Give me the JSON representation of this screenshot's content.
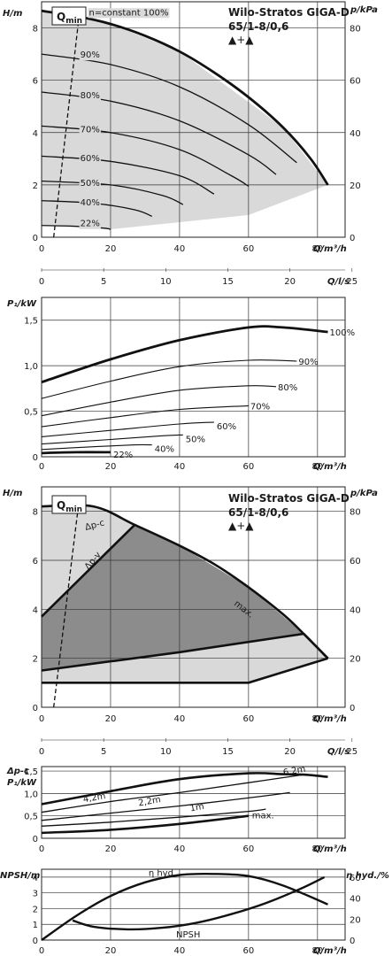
{
  "chart_data": [
    {
      "type": "area",
      "id": "h-curves",
      "title": "Wilo-Stratos GIGA-D",
      "subtitle": "65/1-8/0,6",
      "pump_symbols": "▲+▲",
      "qmin_label": "Q",
      "qmin_sub": "min",
      "ylabel_left": "H/m",
      "ylabel_right": "p/kPa",
      "xlabel": "Q/m³/h",
      "xlabel2": "Q/l/s",
      "xlim": [
        0,
        88
      ],
      "ylim": [
        0,
        9
      ],
      "xticks": [
        "0",
        "20",
        "40",
        "60",
        "80"
      ],
      "yticks_left": [
        "0",
        "2",
        "4",
        "6",
        "8"
      ],
      "yticks_right": [
        "0",
        "20",
        "40",
        "60",
        "80"
      ],
      "xticks2": [
        "0",
        "5",
        "10",
        "15",
        "20",
        "25"
      ],
      "grid": true,
      "envelope": [
        [
          0,
          8.65
        ],
        [
          0,
          0.45
        ],
        [
          20,
          0.3
        ],
        [
          60,
          0.85
        ],
        [
          83,
          2.0
        ],
        [
          70,
          4.2
        ],
        [
          40,
          7.1
        ],
        [
          20,
          8.15
        ],
        [
          0,
          8.65
        ]
      ],
      "series": [
        {
          "name": "n=constant 100%",
          "x": [
            0,
            10,
            20,
            30,
            40,
            50,
            60,
            70,
            78,
            83
          ],
          "y": [
            8.65,
            8.45,
            8.15,
            7.7,
            7.1,
            6.3,
            5.35,
            4.2,
            3.0,
            2.0
          ]
        },
        {
          "name": "90%",
          "x": [
            0,
            20,
            40,
            60,
            74
          ],
          "y": [
            7.0,
            6.6,
            5.75,
            4.3,
            2.85
          ]
        },
        {
          "name": "80%",
          "x": [
            0,
            20,
            40,
            60,
            68
          ],
          "y": [
            5.55,
            5.2,
            4.45,
            3.15,
            2.4
          ]
        },
        {
          "name": "70%",
          "x": [
            0,
            20,
            40,
            55,
            60
          ],
          "y": [
            4.25,
            4.0,
            3.35,
            2.35,
            1.95
          ]
        },
        {
          "name": "60%",
          "x": [
            0,
            20,
            40,
            50
          ],
          "y": [
            3.1,
            2.9,
            2.35,
            1.65
          ]
        },
        {
          "name": "50%",
          "x": [
            0,
            20,
            35,
            41
          ],
          "y": [
            2.15,
            2.0,
            1.6,
            1.25
          ]
        },
        {
          "name": "40%",
          "x": [
            0,
            15,
            27,
            32
          ],
          "y": [
            1.4,
            1.3,
            1.05,
            0.8
          ]
        },
        {
          "name": "22%",
          "x": [
            0,
            10,
            18,
            20
          ],
          "y": [
            0.45,
            0.42,
            0.35,
            0.3
          ]
        }
      ],
      "qmin_line": {
        "x": [
          3.5,
          11
        ],
        "y": [
          0,
          8.6
        ]
      }
    },
    {
      "type": "line",
      "id": "p1-curves",
      "ylabel": "P₁/kW",
      "xlabel": "Q/m³/h",
      "xlim": [
        0,
        88
      ],
      "ylim": [
        0,
        1.75
      ],
      "xticks": [
        "0",
        "20",
        "40",
        "60",
        "80"
      ],
      "yticks": [
        "0",
        "0,5",
        "1,0",
        "1,5"
      ],
      "grid": true,
      "series": [
        {
          "name": "100%",
          "x": [
            0,
            20,
            40,
            60,
            70,
            83
          ],
          "y": [
            0.82,
            1.07,
            1.28,
            1.42,
            1.42,
            1.37
          ]
        },
        {
          "name": "90%",
          "x": [
            0,
            20,
            40,
            60,
            74
          ],
          "y": [
            0.64,
            0.83,
            0.99,
            1.06,
            1.05
          ]
        },
        {
          "name": "80%",
          "x": [
            0,
            20,
            40,
            60,
            68
          ],
          "y": [
            0.45,
            0.6,
            0.73,
            0.78,
            0.77
          ]
        },
        {
          "name": "70%",
          "x": [
            0,
            20,
            40,
            60
          ],
          "y": [
            0.33,
            0.43,
            0.52,
            0.56
          ]
        },
        {
          "name": "60%",
          "x": [
            0,
            20,
            40,
            50
          ],
          "y": [
            0.22,
            0.29,
            0.36,
            0.38
          ]
        },
        {
          "name": "50%",
          "x": [
            0,
            20,
            35,
            41
          ],
          "y": [
            0.14,
            0.19,
            0.23,
            0.24
          ]
        },
        {
          "name": "40%",
          "x": [
            0,
            15,
            27,
            32
          ],
          "y": [
            0.08,
            0.11,
            0.13,
            0.13
          ]
        },
        {
          "name": "22%",
          "x": [
            0,
            10,
            20
          ],
          "y": [
            0.04,
            0.05,
            0.05
          ]
        }
      ]
    },
    {
      "type": "area",
      "id": "control-modes",
      "title": "Wilo-Stratos GIGA-D",
      "subtitle": "65/1-8/0,6",
      "pump_symbols": "▲+▲",
      "qmin_label": "Q",
      "qmin_sub": "min",
      "ylabel_left": "H/m",
      "ylabel_right": "p/kPa",
      "xlabel": "Q/m³/h",
      "xlabel2": "Q/l/s",
      "xlim": [
        0,
        88
      ],
      "ylim": [
        0,
        9
      ],
      "xticks": [
        "0",
        "20",
        "40",
        "60",
        "80"
      ],
      "yticks_left": [
        "0",
        "2",
        "4",
        "6",
        "8"
      ],
      "yticks_right": [
        "0",
        "20",
        "40",
        "60",
        "80"
      ],
      "xticks2": [
        "0",
        "5",
        "10",
        "15",
        "20",
        "25"
      ],
      "grid": true,
      "labels": {
        "dpc": "Δp-c",
        "dpv": "Δp-v",
        "max": "max."
      },
      "light_region": [
        [
          0,
          8.2
        ],
        [
          15,
          8.2
        ],
        [
          27,
          7.45
        ],
        [
          40,
          6.6
        ],
        [
          60,
          4.9
        ],
        [
          76,
          3.0
        ],
        [
          83,
          2.0
        ],
        [
          60,
          1.0
        ],
        [
          0,
          1.0
        ]
      ],
      "dark_region": [
        [
          0,
          3.7
        ],
        [
          27,
          7.45
        ],
        [
          40,
          6.6
        ],
        [
          60,
          4.9
        ],
        [
          76,
          3.0
        ],
        [
          40,
          2.25
        ],
        [
          0,
          1.5
        ]
      ],
      "lines": [
        {
          "name": "max.",
          "x": [
            0,
            15,
            27,
            40,
            50,
            60,
            70,
            76,
            83
          ],
          "y": [
            8.2,
            8.2,
            7.45,
            6.6,
            5.85,
            4.9,
            3.8,
            3.0,
            2.0
          ]
        },
        {
          "name": "min",
          "x": [
            0,
            60,
            83
          ],
          "y": [
            1.0,
            1.0,
            2.0
          ]
        },
        {
          "name": "Δp-v",
          "x": [
            0,
            27
          ],
          "y": [
            3.7,
            7.45
          ]
        },
        {
          "name": "Δp-v-low",
          "x": [
            0,
            40,
            76
          ],
          "y": [
            1.5,
            2.25,
            3.0
          ]
        },
        {
          "name": "76-83",
          "x": [
            76,
            83
          ],
          "y": [
            3.0,
            2.0
          ]
        }
      ],
      "qmin_line": {
        "x": [
          3.5,
          11
        ],
        "y": [
          0,
          8.6
        ]
      }
    },
    {
      "type": "line",
      "id": "p1-control",
      "ylabel": "Δp-c",
      "ylabel2": "P₁/kW",
      "xlabel": "Q/m³/h",
      "xlim": [
        0,
        88
      ],
      "ylim": [
        0,
        1.6
      ],
      "xticks": [
        "0",
        "20",
        "40",
        "60",
        "80"
      ],
      "yticks": [
        "0",
        "0,5",
        "1,0",
        "1,5"
      ],
      "grid": true,
      "series": [
        {
          "name": "max.",
          "x": [
            0,
            20,
            40,
            60,
            70,
            76,
            83
          ],
          "y": [
            0.76,
            1.05,
            1.32,
            1.45,
            1.43,
            1.42,
            1.37
          ]
        },
        {
          "name": "6,2m",
          "x": [
            0,
            20,
            40,
            60,
            76
          ],
          "y": [
            0.58,
            0.82,
            1.02,
            1.24,
            1.42
          ]
        },
        {
          "name": "4,2m",
          "x": [
            0,
            20,
            40,
            60,
            72
          ],
          "y": [
            0.4,
            0.56,
            0.72,
            0.9,
            1.02
          ]
        },
        {
          "name": "2,2m",
          "x": [
            0,
            20,
            40,
            60,
            65
          ],
          "y": [
            0.27,
            0.36,
            0.47,
            0.6,
            0.65
          ]
        },
        {
          "name": "1m",
          "x": [
            0,
            20,
            40,
            60
          ],
          "y": [
            0.12,
            0.19,
            0.32,
            0.5
          ]
        }
      ],
      "curve_labels": [
        "6,2m",
        "4,2m",
        "2,2m",
        "1m",
        "max."
      ]
    },
    {
      "type": "line",
      "id": "npsh-eta",
      "ylabel_left": "NPSH/m",
      "ylabel_right": "η hyd./%",
      "xlabel": "Q/m³/h",
      "xlim": [
        0,
        88
      ],
      "ylim": [
        0,
        4.5
      ],
      "xticks": [
        "0",
        "20",
        "40",
        "60",
        "80"
      ],
      "yticks_left": [
        "0",
        "1",
        "2",
        "3",
        "4"
      ],
      "yticks_right": [
        "0",
        "20",
        "40",
        "60"
      ],
      "grid": true,
      "series": [
        {
          "name": "η hyd.",
          "axis": "right",
          "x": [
            0,
            10,
            20,
            30,
            40,
            50,
            60,
            70,
            83
          ],
          "y": [
            0,
            23,
            42,
            55,
            62,
            63,
            61,
            52,
            34
          ]
        },
        {
          "name": "NPSH",
          "axis": "left",
          "x": [
            9,
            15,
            25,
            35,
            45,
            55,
            65,
            75,
            82
          ],
          "y": [
            1.25,
            0.85,
            0.68,
            0.78,
            1.1,
            1.65,
            2.35,
            3.25,
            4.0
          ]
        }
      ]
    }
  ]
}
